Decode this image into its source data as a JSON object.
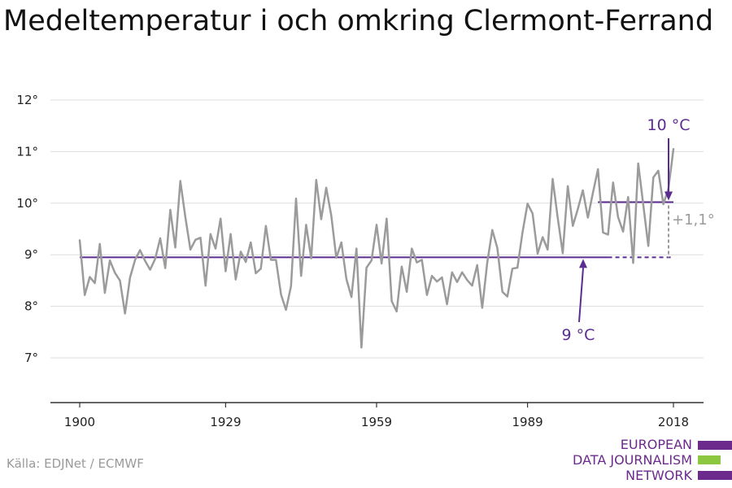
{
  "title": "Medeltemperatur i och omkring Clermont-Ferrand",
  "source": "Källa: EDJNet / ECMWF",
  "logo": {
    "lines": [
      "EUROPEAN",
      "DATA JOURNALISM",
      "NETWORK"
    ],
    "colors": {
      "purple": "#6b2a8c",
      "green": "#8dc63f"
    }
  },
  "chart_data": {
    "type": "line",
    "title": "Medeltemperatur i och omkring Clermont-Ferrand",
    "xlabel": "",
    "ylabel": "",
    "xlim": [
      1900,
      2018
    ],
    "ylim": [
      7,
      12
    ],
    "x_ticks": [
      1900,
      1929,
      1959,
      1989,
      2018
    ],
    "y_ticks": [
      7,
      8,
      9,
      10,
      11,
      12
    ],
    "y_tick_labels": [
      "7°",
      "8°",
      "9°",
      "10°",
      "11°",
      "12°"
    ],
    "grid": true,
    "legend": "none",
    "colors": {
      "series": "#9b9b9b",
      "accent": "#5c2d91",
      "grid": "#dddddd",
      "axis": "#333333"
    },
    "series": [
      {
        "x": [
          1900,
          1901,
          1902,
          1903,
          1904,
          1905,
          1906,
          1907,
          1908,
          1909,
          1910,
          1911,
          1912,
          1913,
          1914,
          1915,
          1916,
          1917,
          1918,
          1919,
          1920,
          1921,
          1922,
          1923,
          1924,
          1925,
          1926,
          1927,
          1928,
          1929,
          1930,
          1931,
          1932,
          1933,
          1934,
          1935,
          1936,
          1937,
          1938,
          1939,
          1940,
          1941,
          1942,
          1943,
          1944,
          1945,
          1946,
          1947,
          1948,
          1949,
          1950,
          1951,
          1952,
          1953,
          1954,
          1955,
          1956,
          1957,
          1958,
          1959,
          1960,
          1961,
          1962,
          1963,
          1964,
          1965,
          1966,
          1967,
          1968,
          1969,
          1970,
          1971,
          1972,
          1973,
          1974,
          1975,
          1976,
          1977,
          1978,
          1979,
          1980,
          1981,
          1982,
          1983,
          1984,
          1985,
          1986,
          1987,
          1988,
          1989,
          1990,
          1991,
          1992,
          1993,
          1994,
          1995,
          1996,
          1997,
          1998,
          1999,
          2000,
          2001,
          2002,
          2003,
          2004,
          2005,
          2006,
          2007,
          2008,
          2009,
          2010,
          2011,
          2012,
          2013,
          2014,
          2015,
          2016,
          2017,
          2018
        ],
        "values": [
          9.28,
          8.22,
          8.57,
          8.45,
          9.21,
          8.26,
          8.89,
          8.65,
          8.5,
          7.86,
          8.56,
          8.9,
          9.09,
          8.88,
          8.71,
          8.92,
          9.32,
          8.74,
          9.87,
          9.14,
          10.43,
          9.73,
          9.1,
          9.29,
          9.33,
          8.4,
          9.4,
          9.12,
          9.7,
          8.68,
          9.4,
          8.52,
          9.06,
          8.86,
          9.24,
          8.64,
          8.73,
          9.56,
          8.9,
          8.9,
          8.23,
          7.93,
          8.39,
          10.09,
          8.59,
          9.58,
          8.93,
          10.45,
          9.69,
          10.3,
          9.76,
          8.94,
          9.24,
          8.53,
          8.18,
          9.12,
          7.2,
          8.75,
          8.89,
          9.58,
          8.83,
          9.7,
          8.1,
          7.9,
          8.77,
          8.28,
          9.12,
          8.85,
          8.9,
          8.22,
          8.59,
          8.48,
          8.56,
          8.04,
          8.66,
          8.47,
          8.66,
          8.51,
          8.4,
          8.8,
          7.97,
          8.85,
          9.48,
          9.13,
          8.28,
          8.19,
          8.73,
          8.75,
          9.43,
          9.99,
          9.8,
          9.02,
          9.34,
          9.1,
          10.47,
          9.72,
          9.03,
          10.33,
          9.56,
          9.89,
          10.25,
          9.72,
          10.2,
          10.66,
          9.43,
          9.39,
          10.4,
          9.73,
          9.45,
          10.12,
          8.84,
          10.77,
          9.97,
          9.17,
          10.5,
          10.63,
          9.98,
          10.28,
          11.05
        ]
      }
    ],
    "reference_lines": [
      {
        "label": "9 °C",
        "value": 8.95,
        "x_solid": [
          1900,
          2005
        ],
        "x_dashed": [
          2005,
          2018
        ]
      },
      {
        "label": "10 °C",
        "value": 10.02,
        "x_solid": [
          2003,
          2018
        ]
      }
    ],
    "annotations": {
      "difference": "+1,1°"
    }
  }
}
